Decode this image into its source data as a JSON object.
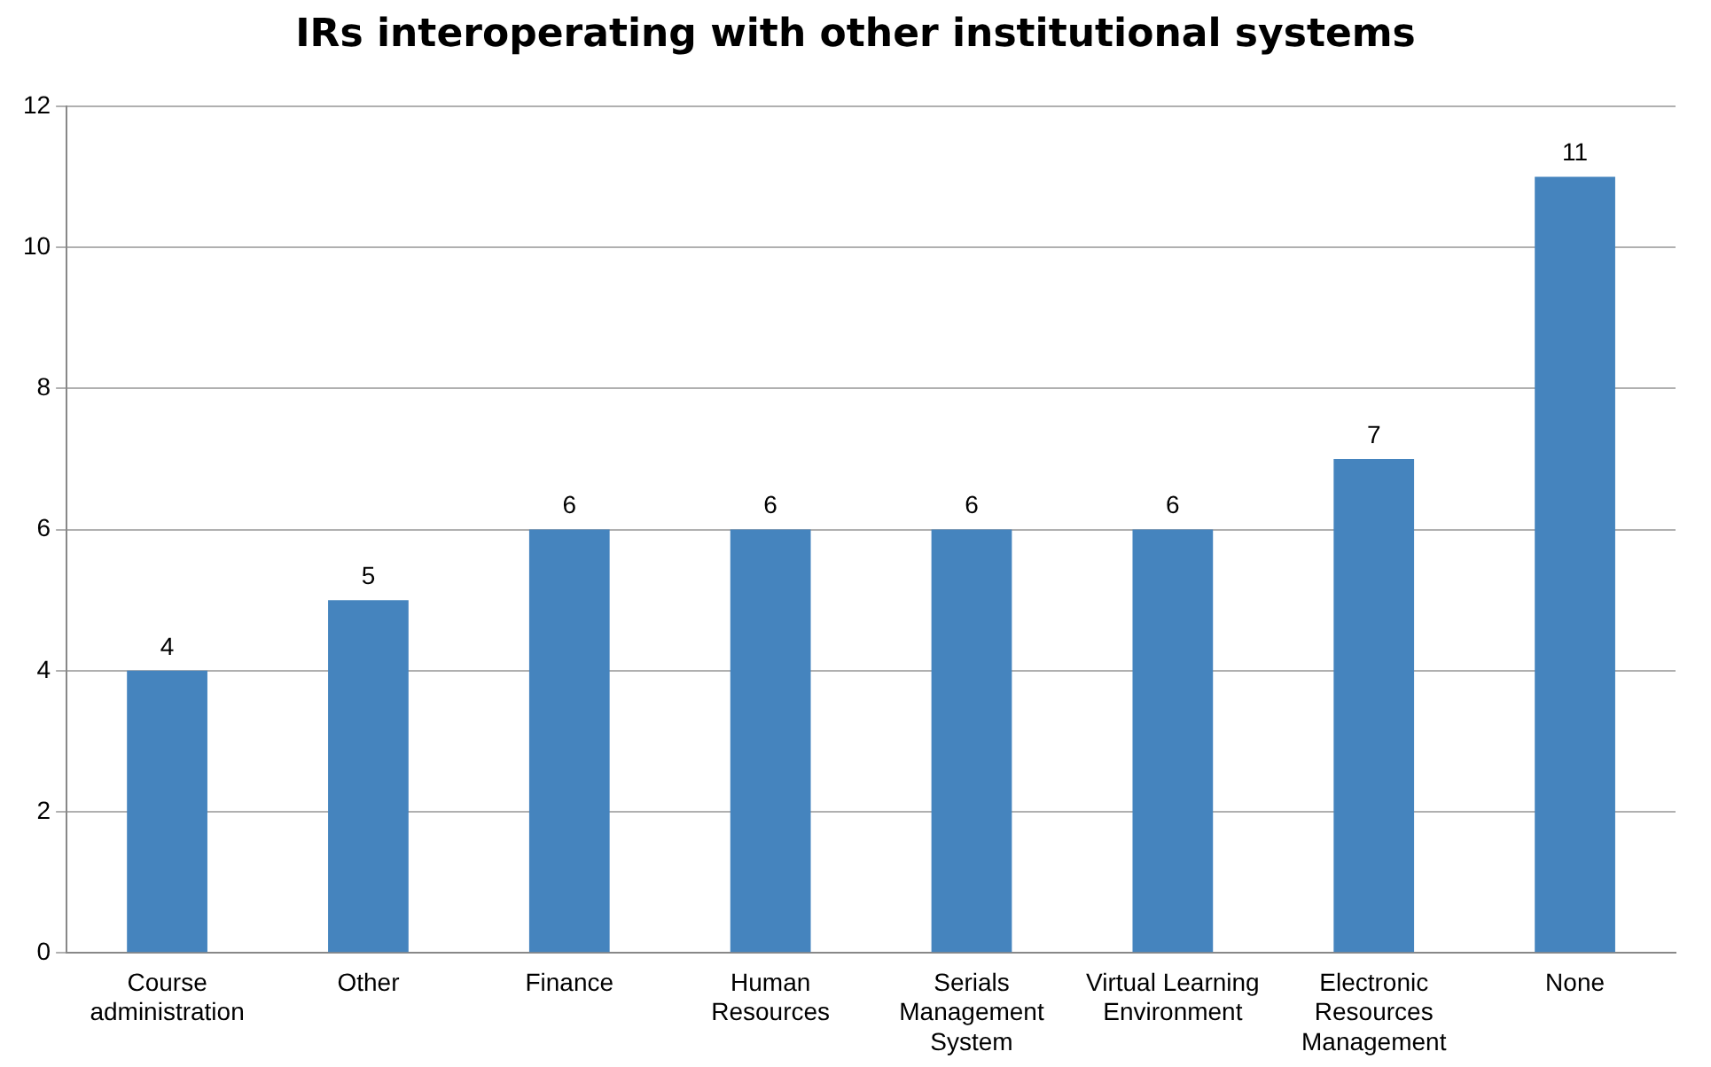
{
  "chart_data": {
    "type": "bar",
    "title": "IRs interoperating with other institutional systems",
    "categories": [
      "Course administration",
      "Other",
      "Finance",
      "Human Resources",
      "Serials Management System",
      "Virtual Learning Environment",
      "Electronic Resources Management",
      "None"
    ],
    "values": [
      4,
      5,
      6,
      6,
      6,
      6,
      7,
      11
    ],
    "color": "#4584be",
    "ylim": [
      0,
      12
    ],
    "yticks": [
      0,
      2,
      4,
      6,
      8,
      10,
      12
    ],
    "grid": "y",
    "data_labels": true,
    "legend": false
  }
}
